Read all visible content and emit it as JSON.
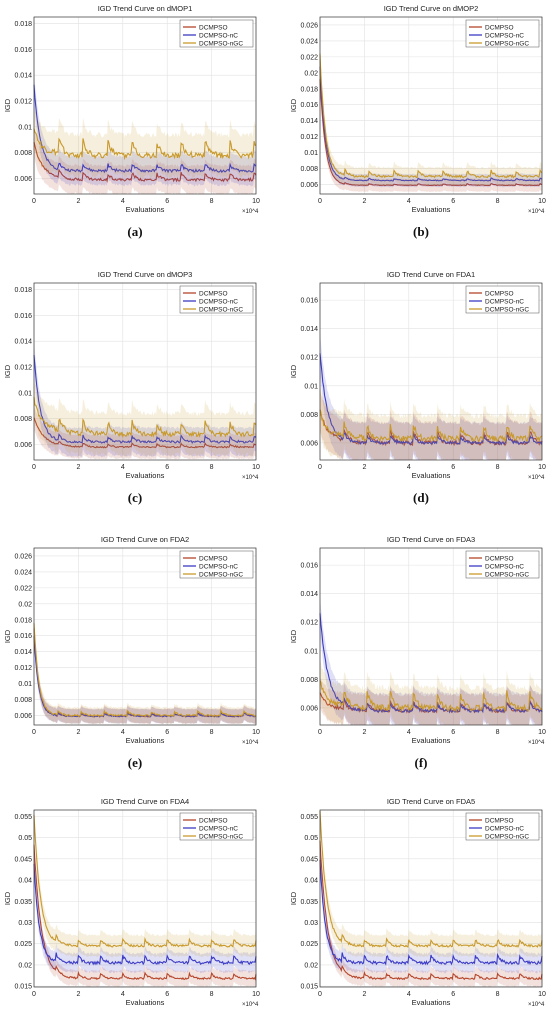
{
  "colors": {
    "DCMPSO": "#b5462b",
    "DCMPSO-nC": "#3b3bc4",
    "DCMPSO-nGC": "#c89a2e"
  },
  "chart_data": [
    {
      "type": "line",
      "caption": "(a)",
      "title": "IGD Trend Curve on dMOP1",
      "xlabel": "Evaluations",
      "ylabel": "IGD",
      "x_multiplier": "×10^4",
      "xlim": [
        0,
        10
      ],
      "xticks": [
        0,
        2,
        4,
        6,
        8,
        10
      ],
      "ylim": [
        0.0048,
        0.0185
      ],
      "yticks": [
        0.006,
        0.008,
        0.01,
        0.012,
        0.014,
        0.016,
        0.018
      ],
      "ytick_labels": [
        "0.006",
        "0.008",
        "0.01",
        "0.012",
        "0.014",
        "0.016",
        "0.018"
      ],
      "legend": [
        "DCMPSO",
        "DCMPSO-nC",
        "DCMPSO-nGC"
      ],
      "legend_position": "top-right",
      "grid": true,
      "series": [
        {
          "name": "DCMPSO",
          "start": 0.0082,
          "base": 0.0059,
          "amp": 0.0006,
          "decay": 0.5,
          "period": 1.1,
          "band": 0.0011
        },
        {
          "name": "DCMPSO-nC",
          "start": 0.0127,
          "base": 0.0066,
          "amp": 0.0006,
          "decay": 0.3,
          "period": 1.1,
          "band": 0.0011
        },
        {
          "name": "DCMPSO-nGC",
          "start": 0.0088,
          "base": 0.0078,
          "amp": 0.0013,
          "decay": 0.6,
          "period": 1.1,
          "band": 0.0016
        }
      ]
    },
    {
      "type": "line",
      "caption": "(b)",
      "title": "IGD Trend Curve on dMOP2",
      "xlabel": "Evaluations",
      "ylabel": "IGD",
      "x_multiplier": "×10^4",
      "xlim": [
        0,
        10
      ],
      "xticks": [
        0,
        2,
        4,
        6,
        8,
        10
      ],
      "ylim": [
        0.0048,
        0.027
      ],
      "yticks": [
        0.006,
        0.008,
        0.01,
        0.012,
        0.014,
        0.016,
        0.018,
        0.02,
        0.022,
        0.024,
        0.026
      ],
      "ytick_labels": [
        "0.006",
        "0.008",
        "0.01",
        "0.012",
        "0.014",
        "0.016",
        "0.018",
        "0.02",
        "0.022",
        "0.024",
        "0.026"
      ],
      "legend": [
        "DCMPSO",
        "DCMPSO-nC",
        "DCMPSO-nGC"
      ],
      "legend_position": "top-right",
      "grid": true,
      "series": [
        {
          "name": "DCMPSO",
          "start": 0.019,
          "base": 0.0059,
          "amp": 0.0002,
          "decay": 0.25,
          "period": 1.1,
          "band": 0.0008
        },
        {
          "name": "DCMPSO-nC",
          "start": 0.0205,
          "base": 0.0065,
          "amp": 0.0003,
          "decay": 0.25,
          "period": 1.1,
          "band": 0.0008
        },
        {
          "name": "DCMPSO-nGC",
          "start": 0.0215,
          "base": 0.007,
          "amp": 0.0008,
          "decay": 0.25,
          "period": 1.1,
          "band": 0.0011
        }
      ]
    },
    {
      "type": "line",
      "caption": "(c)",
      "title": "IGD Trend Curve on dMOP3",
      "xlabel": "Evaluations",
      "ylabel": "IGD",
      "x_multiplier": "×10^4",
      "xlim": [
        0,
        10
      ],
      "xticks": [
        0,
        2,
        4,
        6,
        8,
        10
      ],
      "ylim": [
        0.0048,
        0.0185
      ],
      "yticks": [
        0.006,
        0.008,
        0.01,
        0.012,
        0.014,
        0.016,
        0.018
      ],
      "ytick_labels": [
        "0.006",
        "0.008",
        "0.01",
        "0.012",
        "0.014",
        "0.016",
        "0.018"
      ],
      "legend": [
        "DCMPSO",
        "DCMPSO-nC",
        "DCMPSO-nGC"
      ],
      "legend_position": "top-right",
      "grid": true,
      "series": [
        {
          "name": "DCMPSO",
          "start": 0.0078,
          "base": 0.0058,
          "amp": 0.0003,
          "decay": 0.5,
          "period": 1.1,
          "band": 0.0009
        },
        {
          "name": "DCMPSO-nC",
          "start": 0.0125,
          "base": 0.0062,
          "amp": 0.0005,
          "decay": 0.3,
          "period": 1.1,
          "band": 0.0011
        },
        {
          "name": "DCMPSO-nGC",
          "start": 0.0085,
          "base": 0.0068,
          "amp": 0.0011,
          "decay": 0.7,
          "period": 1.1,
          "band": 0.0016
        }
      ]
    },
    {
      "type": "line",
      "caption": "(d)",
      "title": "IGD Trend Curve on FDA1",
      "xlabel": "Evaluations",
      "ylabel": "IGD",
      "x_multiplier": "×10^4",
      "xlim": [
        0,
        10
      ],
      "xticks": [
        0,
        2,
        4,
        6,
        8,
        10
      ],
      "ylim": [
        0.0048,
        0.0172
      ],
      "yticks": [
        0.006,
        0.008,
        0.01,
        0.012,
        0.014,
        0.016
      ],
      "ytick_labels": [
        "0.006",
        "0.008",
        "0.01",
        "0.012",
        "0.014",
        "0.016"
      ],
      "legend": [
        "DCMPSO",
        "DCMPSO-nC",
        "DCMPSO-nGC"
      ],
      "legend_position": "top-right",
      "grid": true,
      "series": [
        {
          "name": "DCMPSO",
          "start": 0.0075,
          "base": 0.006,
          "amp": 0.0009,
          "decay": 0.6,
          "period": 1.05,
          "band": 0.0014
        },
        {
          "name": "DCMPSO-nC",
          "start": 0.0118,
          "base": 0.006,
          "amp": 0.0006,
          "decay": 0.35,
          "period": 1.05,
          "band": 0.0014
        },
        {
          "name": "DCMPSO-nGC",
          "start": 0.0072,
          "base": 0.0063,
          "amp": 0.0011,
          "decay": 0.7,
          "period": 1.05,
          "band": 0.0016
        }
      ]
    },
    {
      "type": "line",
      "caption": "(e)",
      "title": "IGD Trend Curve on FDA2",
      "xlabel": "Evaluations",
      "ylabel": "IGD",
      "x_multiplier": "×10^4",
      "xlim": [
        0,
        10
      ],
      "xticks": [
        0,
        2,
        4,
        6,
        8,
        10
      ],
      "ylim": [
        0.0048,
        0.027
      ],
      "yticks": [
        0.006,
        0.008,
        0.01,
        0.012,
        0.014,
        0.016,
        0.018,
        0.02,
        0.022,
        0.024,
        0.026
      ],
      "ytick_labels": [
        "0.006",
        "0.008",
        "0.01",
        "0.012",
        "0.014",
        "0.016",
        "0.018",
        "0.02",
        "0.022",
        "0.024",
        "0.026"
      ],
      "legend": [
        "DCMPSO",
        "DCMPSO-nC",
        "DCMPSO-nGC"
      ],
      "legend_position": "top-right",
      "grid": true,
      "series": [
        {
          "name": "DCMPSO",
          "start": 0.0165,
          "base": 0.0059,
          "amp": 0.0005,
          "decay": 0.22,
          "period": 1.05,
          "band": 0.0009
        },
        {
          "name": "DCMPSO-nC",
          "start": 0.0155,
          "base": 0.0059,
          "amp": 0.0004,
          "decay": 0.22,
          "period": 1.05,
          "band": 0.0009
        },
        {
          "name": "DCMPSO-nGC",
          "start": 0.017,
          "base": 0.006,
          "amp": 0.0006,
          "decay": 0.22,
          "period": 1.05,
          "band": 0.001
        }
      ]
    },
    {
      "type": "line",
      "caption": "(f)",
      "title": "IGD Trend Curve on FDA3",
      "xlabel": "Evaluations",
      "ylabel": "IGD",
      "x_multiplier": "×10^4",
      "xlim": [
        0,
        10
      ],
      "xticks": [
        0,
        2,
        4,
        6,
        8,
        10
      ],
      "ylim": [
        0.0048,
        0.0172
      ],
      "yticks": [
        0.006,
        0.008,
        0.01,
        0.012,
        0.014,
        0.016
      ],
      "ytick_labels": [
        "0.006",
        "0.008",
        "0.01",
        "0.012",
        "0.014",
        "0.016"
      ],
      "legend": [
        "DCMPSO",
        "DCMPSO-nC",
        "DCMPSO-nGC"
      ],
      "legend_position": "top-right",
      "grid": true,
      "series": [
        {
          "name": "DCMPSO",
          "start": 0.0065,
          "base": 0.0058,
          "amp": 0.0007,
          "decay": 0.7,
          "period": 1.05,
          "band": 0.0011
        },
        {
          "name": "DCMPSO-nC",
          "start": 0.012,
          "base": 0.0058,
          "amp": 0.0006,
          "decay": 0.4,
          "period": 1.05,
          "band": 0.0012
        },
        {
          "name": "DCMPSO-nGC",
          "start": 0.0068,
          "base": 0.006,
          "amp": 0.0012,
          "decay": 0.8,
          "period": 1.05,
          "band": 0.0014
        }
      ]
    },
    {
      "type": "line",
      "caption": "(g)",
      "title": "IGD Trend Curve on FDA4",
      "xlabel": "Evaluations",
      "ylabel": "IGD",
      "x_multiplier": "×10^4",
      "xlim": [
        0,
        10
      ],
      "xticks": [
        0,
        2,
        4,
        6,
        8,
        10
      ],
      "ylim": [
        0.0148,
        0.0565
      ],
      "yticks": [
        0.015,
        0.02,
        0.025,
        0.03,
        0.035,
        0.04,
        0.045,
        0.05,
        0.055
      ],
      "ytick_labels": [
        "0.015",
        "0.02",
        "0.025",
        "0.03",
        "0.035",
        "0.04",
        "0.045",
        "0.05",
        "0.055"
      ],
      "legend": [
        "DCMPSO",
        "DCMPSO-nC",
        "DCMPSO-nGC"
      ],
      "legend_position": "top-right",
      "grid": true,
      "series": [
        {
          "name": "DCMPSO",
          "start": 0.047,
          "base": 0.0168,
          "amp": 0.0012,
          "decay": 0.35,
          "period": 1.0,
          "band": 0.0018
        },
        {
          "name": "DCMPSO-nC",
          "start": 0.042,
          "base": 0.0205,
          "amp": 0.0018,
          "decay": 0.25,
          "period": 1.0,
          "band": 0.0022
        },
        {
          "name": "DCMPSO-nGC",
          "start": 0.054,
          "base": 0.0245,
          "amp": 0.0015,
          "decay": 0.3,
          "period": 1.0,
          "band": 0.0025
        }
      ]
    },
    {
      "type": "line",
      "caption": "(h)",
      "title": "IGD Trend Curve on FDA5",
      "xlabel": "Evaluations",
      "ylabel": "IGD",
      "x_multiplier": "×10^4",
      "xlim": [
        0,
        10
      ],
      "xticks": [
        0,
        2,
        4,
        6,
        8,
        10
      ],
      "ylim": [
        0.0148,
        0.0565
      ],
      "yticks": [
        0.015,
        0.02,
        0.025,
        0.03,
        0.035,
        0.04,
        0.045,
        0.05,
        0.055
      ],
      "ytick_labels": [
        "0.015",
        "0.02",
        "0.025",
        "0.03",
        "0.035",
        "0.04",
        "0.045",
        "0.05",
        "0.055"
      ],
      "legend": [
        "DCMPSO",
        "DCMPSO-nC",
        "DCMPSO-nGC"
      ],
      "legend_position": "top-right",
      "grid": true,
      "series": [
        {
          "name": "DCMPSO",
          "start": 0.048,
          "base": 0.0168,
          "amp": 0.0012,
          "decay": 0.35,
          "period": 1.0,
          "band": 0.0018
        },
        {
          "name": "DCMPSO-nC",
          "start": 0.043,
          "base": 0.0205,
          "amp": 0.0018,
          "decay": 0.25,
          "period": 1.0,
          "band": 0.0022
        },
        {
          "name": "DCMPSO-nGC",
          "start": 0.055,
          "base": 0.0245,
          "amp": 0.0015,
          "decay": 0.3,
          "period": 1.0,
          "band": 0.0025
        }
      ]
    }
  ]
}
